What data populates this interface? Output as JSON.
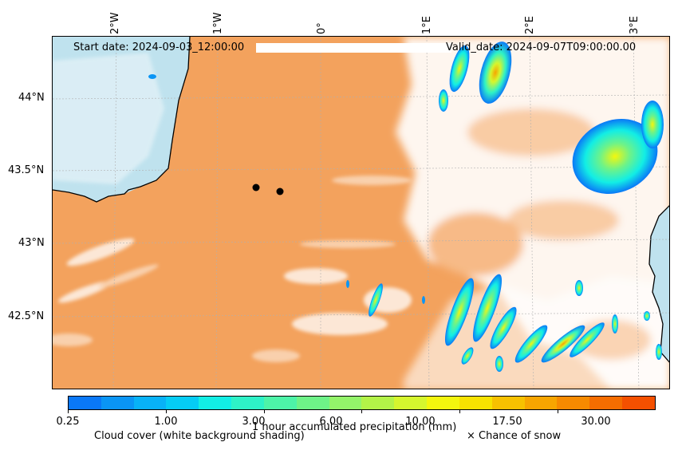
{
  "header": {
    "start_date": "Start date: 2024-09-03_12:00:00",
    "valid_date": "Valid_date: 2024-09-07T09:00:00.00"
  },
  "map": {
    "longitude_labels": [
      "2°W",
      "1°W",
      "0°",
      "1°E",
      "2°E",
      "3°E"
    ],
    "latitude_labels": [
      "44°N",
      "43.5°N",
      "43°N",
      "42.5°N"
    ],
    "land_color": "#bfe2ee",
    "cloud_color": "#f3a25d",
    "coastline_color": "#000000",
    "markers": [
      {
        "name": "marker-1",
        "color": "#000000"
      },
      {
        "name": "marker-2",
        "color": "#000000"
      }
    ]
  },
  "colorbar": {
    "ticks": [
      "0.25",
      "1.00",
      "3.00",
      "6.00",
      "10.00",
      "17.50",
      "30.00"
    ],
    "label": "1 hour accumulated precipitation (mm)",
    "colors": [
      "#0a78f7",
      "#0a95f5",
      "#08b2f7",
      "#05ccf5",
      "#12eee5",
      "#2ef2c7",
      "#4df4a8",
      "#6ef388",
      "#93f46a",
      "#b3f348",
      "#d5f62e",
      "#f3f60e",
      "#f7e200",
      "#f7c100",
      "#f7a500",
      "#f68a00",
      "#f56d00",
      "#f45000"
    ]
  },
  "legend": {
    "cloud_cover": "Cloud cover (white background shading)",
    "snow": "× Chance of snow"
  }
}
